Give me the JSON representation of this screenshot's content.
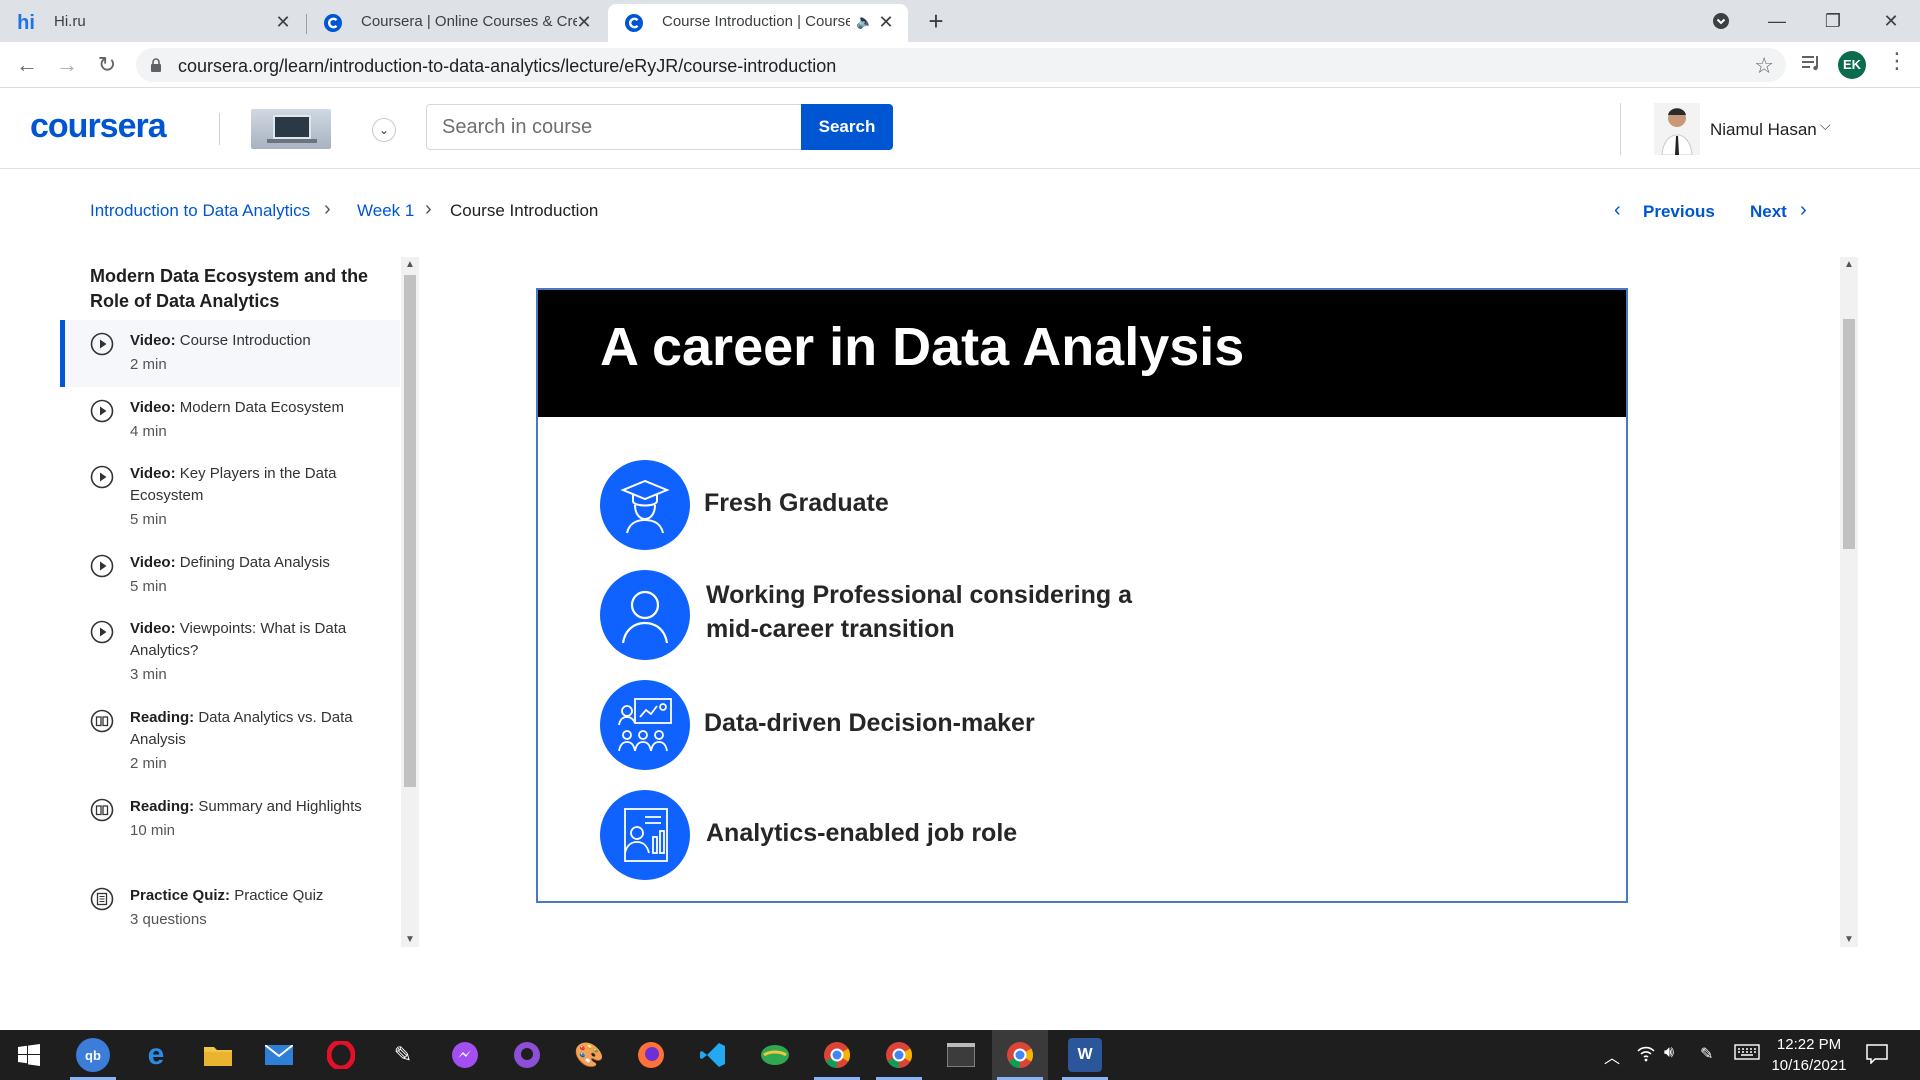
{
  "browser": {
    "tabs": [
      {
        "title": "Hi.ru",
        "favicon": "hi"
      },
      {
        "title": "Coursera | Online Courses & Cred",
        "favicon": "C"
      },
      {
        "title": "Course Introduction | Course",
        "favicon": "C"
      }
    ],
    "url": "coursera.org/learn/introduction-to-data-analytics/lecture/eRyJR/course-introduction",
    "profile_initials": "EK"
  },
  "header": {
    "logo": "coursera",
    "search_placeholder": "Search in course",
    "search_button": "Search",
    "user_name": "Niamul Hasan"
  },
  "breadcrumb": {
    "course": "Introduction to Data Analytics",
    "week": "Week 1",
    "current": "Course Introduction"
  },
  "nav": {
    "previous": "Previous",
    "next": "Next"
  },
  "sidebar": {
    "module_title": "Modern Data Ecosystem and the Role of Data Analytics",
    "items": [
      {
        "type": "Video:",
        "title": "Course Introduction",
        "duration": "2 min",
        "icon": "play-icon"
      },
      {
        "type": "Video:",
        "title": "Modern Data Ecosystem",
        "duration": "4 min",
        "icon": "play-icon"
      },
      {
        "type": "Video:",
        "title": "Key Players in the Data Ecosystem",
        "duration": "5 min",
        "icon": "play-icon"
      },
      {
        "type": "Video:",
        "title": "Defining Data Analysis",
        "duration": "5 min",
        "icon": "play-icon"
      },
      {
        "type": "Video:",
        "title": "Viewpoints: What is Data Analytics?",
        "duration": "3 min",
        "icon": "play-icon"
      },
      {
        "type": "Reading:",
        "title": "Data Analytics vs. Data Analysis",
        "duration": "2 min",
        "icon": "book-icon"
      },
      {
        "type": "Reading:",
        "title": "Summary and Highlights",
        "duration": "10 min",
        "icon": "book-icon"
      },
      {
        "type": "Practice Quiz:",
        "title": "Practice Quiz",
        "duration": "3 questions",
        "icon": "quiz-icon"
      }
    ]
  },
  "slide": {
    "title": "A career in Data Analysis",
    "roles": [
      {
        "line1": "Fresh Graduate",
        "line2": "",
        "icon": "graduate-icon"
      },
      {
        "line1": "Working Professional considering a",
        "line2": "mid-career transition",
        "icon": "person-icon"
      },
      {
        "line1": "Data-driven Decision-maker",
        "line2": "",
        "icon": "presentation-icon"
      },
      {
        "line1": "Analytics-enabled job role",
        "line2": "",
        "icon": "analytics-icon"
      }
    ],
    "accent": "#0f62fe"
  },
  "taskbar": {
    "time": "12:22 PM",
    "date": "10/16/2021"
  },
  "colors": {
    "brand": "#0056d2"
  }
}
